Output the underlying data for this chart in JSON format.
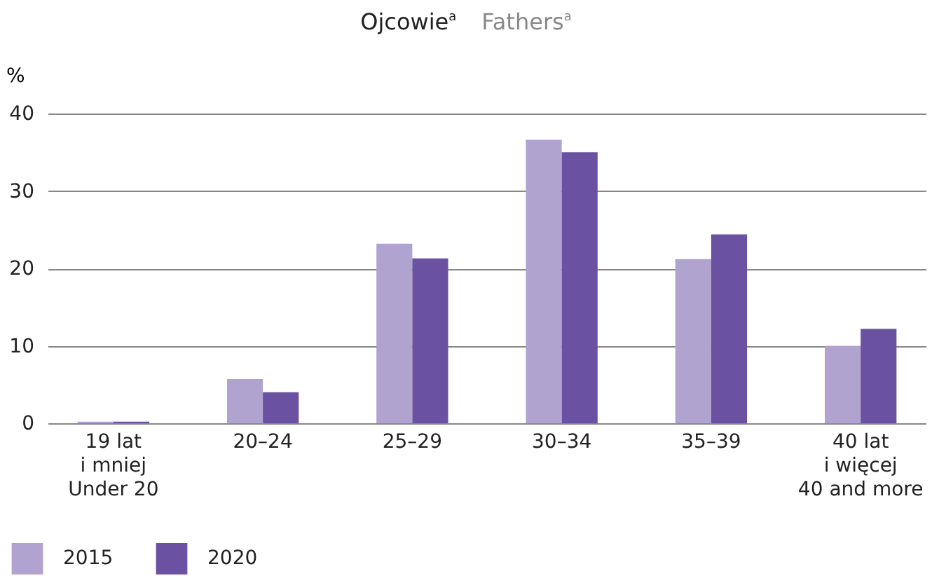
{
  "chart_data": {
    "type": "bar",
    "title": "Ojcowie$^{a}$",
    "subtitle": "Fathers$^{a}$",
    "ylabel": "%",
    "categories": [
      "19 lat\ni mniej\nUnder 20",
      "20–24",
      "25–29",
      "30–34",
      "35–39",
      "40 lat\ni więcej\n40 and more"
    ],
    "series": [
      {
        "name": "2015",
        "color": "#b0a3cf",
        "values": [
          0.2,
          5.7,
          23.2,
          36.6,
          21.2,
          10.0
        ]
      },
      {
        "name": "2020",
        "color": "#6b51a1",
        "values": [
          0.2,
          4.0,
          21.3,
          35.0,
          24.4,
          12.2
        ]
      }
    ],
    "ylim": [
      0,
      40
    ],
    "yticks": [
      0,
      10,
      20,
      30,
      40
    ],
    "grid": "y",
    "legend": "bottom left"
  }
}
